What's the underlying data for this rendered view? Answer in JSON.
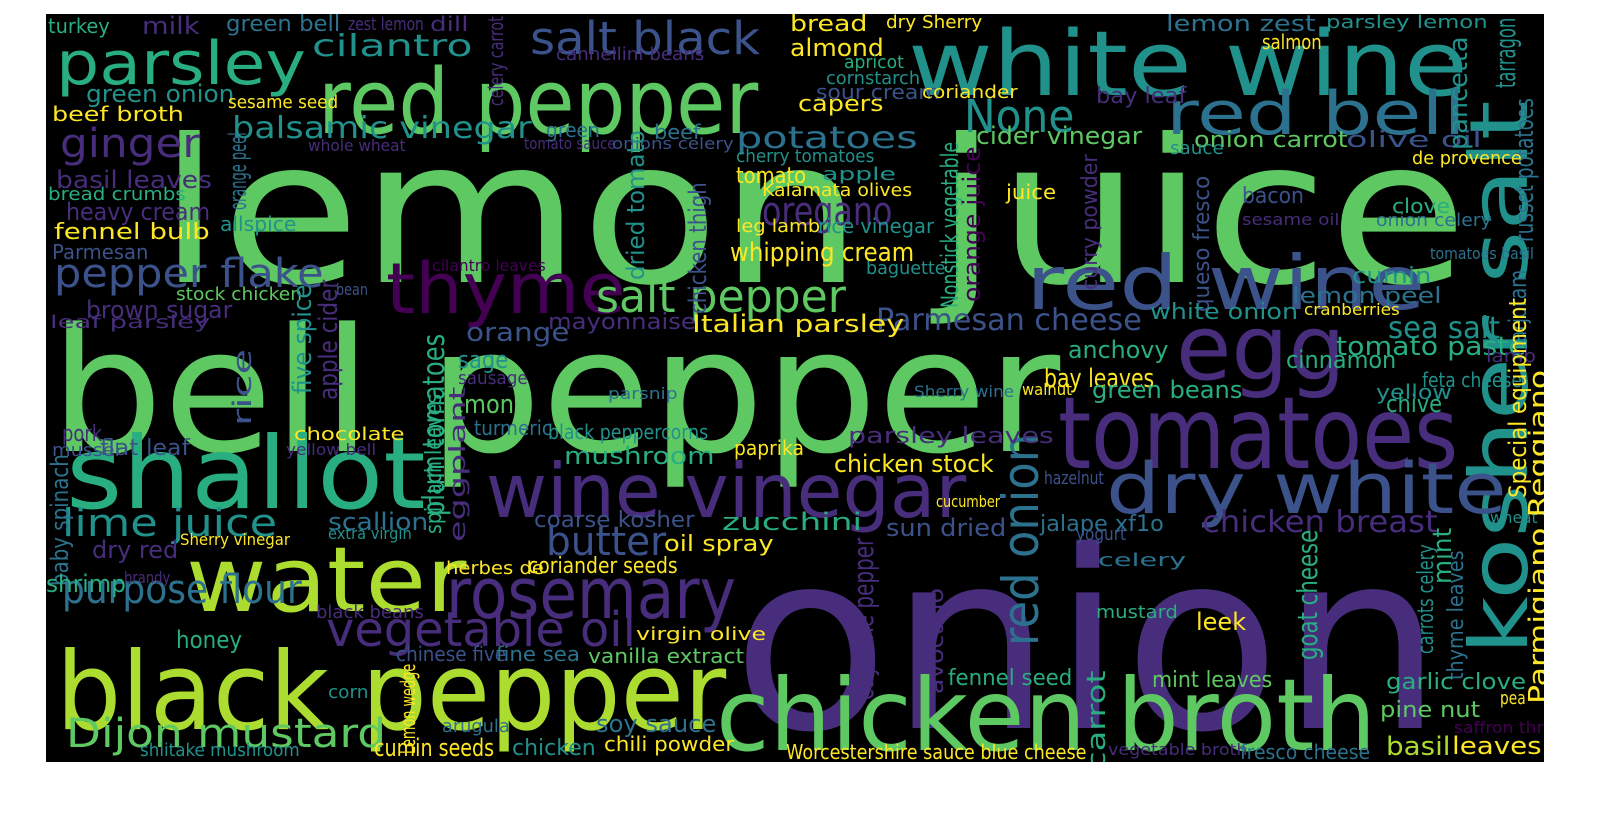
{
  "palette": [
    "#440154",
    "#472d7b",
    "#3b528b",
    "#2c728e",
    "#21918c",
    "#28ae80",
    "#5ec962",
    "#addc30",
    "#fde725"
  ],
  "words": [
    {
      "text": "lemon juice",
      "c": "#5ec962"
    },
    {
      "text": "onion",
      "c": "#472d7b"
    },
    {
      "text": "bell pepper",
      "c": "#5ec962"
    },
    {
      "text": "white wine",
      "c": "#21918c"
    },
    {
      "text": "red pepper",
      "c": "#5ec962"
    },
    {
      "text": "black pepper",
      "c": "#addc30"
    },
    {
      "text": "kosher salt",
      "c": "#21918c"
    },
    {
      "text": "chicken broth",
      "c": "#5ec962"
    },
    {
      "text": "tomatoes",
      "c": "#472d7b"
    },
    {
      "text": "shallot",
      "c": "#28ae80"
    },
    {
      "text": "water",
      "c": "#addc30"
    },
    {
      "text": "egg",
      "c": "#472d7b"
    },
    {
      "text": "red wine",
      "c": "#3b528b"
    },
    {
      "text": "red bell",
      "c": "#2c728e"
    },
    {
      "text": "wine vinegar",
      "c": "#472d7b"
    },
    {
      "text": "dry white",
      "c": "#3b528b"
    },
    {
      "text": "rosemary",
      "c": "#472d7b"
    },
    {
      "text": "thyme",
      "c": "#440154"
    },
    {
      "text": "parsley",
      "c": "#28ae80"
    },
    {
      "text": "salt black",
      "c": "#3b528b"
    },
    {
      "text": "vegetable oil",
      "c": "#472d7b"
    },
    {
      "text": "red onion",
      "c": "#2c728e"
    },
    {
      "text": "salt pepper",
      "c": "#5ec962"
    },
    {
      "text": "Dijon mustard",
      "c": "#5ec962"
    },
    {
      "text": "None",
      "c": "#21918c"
    },
    {
      "text": "pepper flake",
      "c": "#3b528b"
    },
    {
      "text": "ginger",
      "c": "#472d7b"
    },
    {
      "text": "butter",
      "c": "#3b528b"
    },
    {
      "text": "oregano",
      "c": "#472d7b"
    },
    {
      "text": "purpose flour",
      "c": "#2c728e"
    },
    {
      "text": "lime juice",
      "c": "#21918c"
    },
    {
      "text": "balsamic vinegar",
      "c": "#21918c"
    },
    {
      "text": "cilantro",
      "c": "#21918c"
    },
    {
      "text": "chicken breast",
      "c": "#472d7b"
    },
    {
      "text": "Parmesan cheese",
      "c": "#3b528b"
    },
    {
      "text": "potatoes",
      "c": "#2c728e"
    },
    {
      "text": "sea salt",
      "c": "#21918c"
    },
    {
      "text": "tomato paste",
      "c": "#28ae80"
    },
    {
      "text": "plum tomatoes",
      "c": "#28ae80"
    },
    {
      "text": "cayenne pepper",
      "c": "#472d7b"
    },
    {
      "text": "carrot",
      "c": "#28ae80"
    },
    {
      "text": "goat cheese",
      "c": "#28ae80"
    },
    {
      "text": "whipping cream",
      "c": "#fde725"
    },
    {
      "text": "heavy cream",
      "c": "#472d7b"
    },
    {
      "text": "basil leaves",
      "c": "#472d7b"
    },
    {
      "text": "Italian parsley",
      "c": "#fde725"
    },
    {
      "text": "cider vinegar",
      "c": "#5ec962"
    },
    {
      "text": "onion carrot",
      "c": "#5ec962"
    },
    {
      "text": "olive oil",
      "c": "#3b528b"
    },
    {
      "text": "lemon zest",
      "c": "#2c728e"
    },
    {
      "text": "parsley lemon",
      "c": "#21918c"
    },
    {
      "text": "bay leaf",
      "c": "#472d7b"
    },
    {
      "text": "green onion",
      "c": "#21918c"
    },
    {
      "text": "almond",
      "c": "#fde725"
    },
    {
      "text": "bread",
      "c": "#fde725"
    },
    {
      "text": "capers",
      "c": "#fde725"
    },
    {
      "text": "sour cream",
      "c": "#3b528b"
    },
    {
      "text": "milk",
      "c": "#472d7b"
    },
    {
      "text": "green bell",
      "c": "#2c728e"
    },
    {
      "text": "turkey",
      "c": "#28ae80"
    },
    {
      "text": "zest lemon",
      "c": "#472d7b"
    },
    {
      "text": "dill",
      "c": "#472d7b"
    },
    {
      "text": "dry Sherry",
      "c": "#fde725"
    },
    {
      "text": "salmon",
      "c": "#fde725"
    },
    {
      "text": "tarragon",
      "c": "#21918c"
    },
    {
      "text": "pancetta",
      "c": "#21918c"
    },
    {
      "text": "russet potatoes",
      "c": "#2c728e"
    },
    {
      "text": "beef broth",
      "c": "#fde725"
    },
    {
      "text": "sesame seed",
      "c": "#fde725"
    },
    {
      "text": "celery carrot",
      "c": "#472d7b"
    },
    {
      "text": "cannellini beans",
      "c": "#472d7b"
    },
    {
      "text": "apricot",
      "c": "#28ae80"
    },
    {
      "text": "cornstarch",
      "c": "#21918c"
    },
    {
      "text": "coriander",
      "c": "#fde725"
    },
    {
      "text": "green",
      "c": "#2c728e"
    },
    {
      "text": "beef",
      "c": "#2c728e"
    },
    {
      "text": "whole wheat",
      "c": "#472d7b"
    },
    {
      "text": "tomato sauce",
      "c": "#472d7b"
    },
    {
      "text": "onions celery",
      "c": "#3b528b"
    },
    {
      "text": "orange peel",
      "c": "#2c728e"
    },
    {
      "text": "cherry tomatoes",
      "c": "#21918c"
    },
    {
      "text": "sauce",
      "c": "#21918c"
    },
    {
      "text": "de provence",
      "c": "#fde725"
    },
    {
      "text": "bread crumbs",
      "c": "#28ae80"
    },
    {
      "text": "tomato",
      "c": "#fde725"
    },
    {
      "text": "apple",
      "c": "#21918c"
    },
    {
      "text": "Kalamata olives",
      "c": "#fde725"
    },
    {
      "text": "juice",
      "c": "#fde725"
    },
    {
      "text": "bacon",
      "c": "#3b528b"
    },
    {
      "text": "clove",
      "c": "#28ae80"
    },
    {
      "text": "dried tomato",
      "c": "#21918c"
    },
    {
      "text": "chicken thigh",
      "c": "#3b528b"
    },
    {
      "text": "Nonstick vegetable",
      "c": "#28ae80"
    },
    {
      "text": "orange juice",
      "c": "#440154"
    },
    {
      "text": "curry powder",
      "c": "#472d7b"
    },
    {
      "text": "queso fresco",
      "c": "#3b528b"
    },
    {
      "text": "allspice",
      "c": "#21918c"
    },
    {
      "text": "leg lamb",
      "c": "#fde725"
    },
    {
      "text": "rice vinegar",
      "c": "#21918c"
    },
    {
      "text": "sesame oil",
      "c": "#472d7b"
    },
    {
      "text": "onion celery",
      "c": "#2c728e"
    },
    {
      "text": "fennel bulb",
      "c": "#fde725"
    },
    {
      "text": "Parmesan",
      "c": "#3b528b"
    },
    {
      "text": "cilantro leaves",
      "c": "#440154"
    },
    {
      "text": "baguette",
      "c": "#21918c"
    },
    {
      "text": "tomatoes basil",
      "c": "#2c728e"
    },
    {
      "text": "cumin",
      "c": "#21918c"
    },
    {
      "text": "stock chicken",
      "c": "#5ec962"
    },
    {
      "text": "bean",
      "c": "#3b528b"
    },
    {
      "text": "brown sugar",
      "c": "#472d7b"
    },
    {
      "text": "leaf parsley",
      "c": "#472d7b"
    },
    {
      "text": "lemon peel",
      "c": "#2c728e"
    },
    {
      "text": "marjoram",
      "c": "#2c728e"
    },
    {
      "text": "mayonnaise",
      "c": "#472d7b"
    },
    {
      "text": "white onion",
      "c": "#21918c"
    },
    {
      "text": "cranberries",
      "c": "#fde725"
    },
    {
      "text": "orange",
      "c": "#3b528b"
    },
    {
      "text": "five spice",
      "c": "#21918c"
    },
    {
      "text": "apple cider",
      "c": "#472d7b"
    },
    {
      "text": "rice",
      "c": "#3b528b"
    },
    {
      "text": "sage",
      "c": "#21918c"
    },
    {
      "text": "anchovy",
      "c": "#28ae80"
    },
    {
      "text": "cinnamon",
      "c": "#28ae80"
    },
    {
      "text": "lamb",
      "c": "#472d7b"
    },
    {
      "text": "sausage",
      "c": "#472d7b"
    },
    {
      "text": "bay leaves",
      "c": "#fde725"
    },
    {
      "text": "walnut",
      "c": "#fde725"
    },
    {
      "text": "feta cheese",
      "c": "#21918c"
    },
    {
      "text": "Sherry wine",
      "c": "#2c728e"
    },
    {
      "text": "green beans",
      "c": "#28ae80"
    },
    {
      "text": "chive",
      "c": "#28ae80"
    },
    {
      "text": "yellow",
      "c": "#21918c"
    },
    {
      "text": "parsnip",
      "c": "#2c728e"
    },
    {
      "text": "lemon",
      "c": "#5ec962"
    },
    {
      "text": "turmeric",
      "c": "#2c728e"
    },
    {
      "text": "Special equipment",
      "c": "#fde725"
    },
    {
      "text": "pork",
      "c": "#472d7b"
    },
    {
      "text": "flat leaf",
      "c": "#3b528b"
    },
    {
      "text": "chocolate",
      "c": "#fde725"
    },
    {
      "text": "black peppercorns",
      "c": "#21918c"
    },
    {
      "text": "parsley leaves",
      "c": "#472d7b"
    },
    {
      "text": "mussel",
      "c": "#3b528b"
    },
    {
      "text": "yellow bell",
      "c": "#472d7b"
    },
    {
      "text": "baby spinach",
      "c": "#2c728e"
    },
    {
      "text": "spinach leaves",
      "c": "#28ae80"
    },
    {
      "text": "eggplant",
      "c": "#472d7b"
    },
    {
      "text": "paprika",
      "c": "#fde725"
    },
    {
      "text": "mushroom",
      "c": "#28ae80"
    },
    {
      "text": "chicken stock",
      "c": "#fde725"
    },
    {
      "text": "hazelnut",
      "c": "#3b528b"
    },
    {
      "text": "scallion",
      "c": "#2c728e"
    },
    {
      "text": "coarse kosher",
      "c": "#3b528b"
    },
    {
      "text": "zucchini",
      "c": "#28ae80"
    },
    {
      "text": "sun dried",
      "c": "#3b528b"
    },
    {
      "text": "jalape xf1o",
      "c": "#2c728e"
    },
    {
      "text": "cucumber",
      "c": "#fde725"
    },
    {
      "text": "wheat flour",
      "c": "#21918c"
    },
    {
      "text": "extra virgin",
      "c": "#21918c"
    },
    {
      "text": "dry red",
      "c": "#472d7b"
    },
    {
      "text": "Sherry vinegar",
      "c": "#fde725"
    },
    {
      "text": "oil spray",
      "c": "#fde725"
    },
    {
      "text": "yogurt",
      "c": "#3b528b"
    },
    {
      "text": "mint",
      "c": "#28ae80"
    },
    {
      "text": "shrimp",
      "c": "#28ae80"
    },
    {
      "text": "brandy",
      "c": "#472d7b"
    },
    {
      "text": "herbes de",
      "c": "#fde725"
    },
    {
      "text": "coriander seeds",
      "c": "#fde725"
    },
    {
      "text": "celery",
      "c": "#2c728e"
    },
    {
      "text": "carrots celery",
      "c": "#21918c"
    },
    {
      "text": "thyme leaves",
      "c": "#2c728e"
    },
    {
      "text": "Parmigiano Reggiano",
      "c": "#fde725"
    },
    {
      "text": "black beans",
      "c": "#472d7b"
    },
    {
      "text": "honey",
      "c": "#28ae80"
    },
    {
      "text": "mustard",
      "c": "#28ae80"
    },
    {
      "text": "leek",
      "c": "#fde725"
    },
    {
      "text": "avocado",
      "c": "#472d7b"
    },
    {
      "text": "virgin olive",
      "c": "#fde725"
    },
    {
      "text": "chinese five",
      "c": "#3b528b"
    },
    {
      "text": "fine sea",
      "c": "#2c728e"
    },
    {
      "text": "vanilla extract",
      "c": "#5ec962"
    },
    {
      "text": "fennel seed",
      "c": "#28ae80"
    },
    {
      "text": "mint leaves",
      "c": "#5ec962"
    },
    {
      "text": "garlic clove",
      "c": "#28ae80"
    },
    {
      "text": "pea",
      "c": "#fde725"
    },
    {
      "text": "corn",
      "c": "#21918c"
    },
    {
      "text": "Lemon wedge",
      "c": "#fde725"
    },
    {
      "text": "pine nut",
      "c": "#5ec962"
    },
    {
      "text": "arugula",
      "c": "#2c728e"
    },
    {
      "text": "soy sauce",
      "c": "#2c728e"
    },
    {
      "text": "saffron threads",
      "c": "#440154"
    },
    {
      "text": "shiitake mushroom",
      "c": "#21918c"
    },
    {
      "text": "cumin seeds",
      "c": "#fde725"
    },
    {
      "text": "chicken",
      "c": "#21918c"
    },
    {
      "text": "chili powder",
      "c": "#fde725"
    },
    {
      "text": "Worcestershire sauce blue cheese",
      "c": "#fde725"
    },
    {
      "text": "vegetable broth",
      "c": "#472d7b"
    },
    {
      "text": "fresco cheese",
      "c": "#2c728e"
    },
    {
      "text": "basil",
      "c": "#addc30"
    },
    {
      "text": "leaves",
      "c": "#fde725"
    }
  ]
}
